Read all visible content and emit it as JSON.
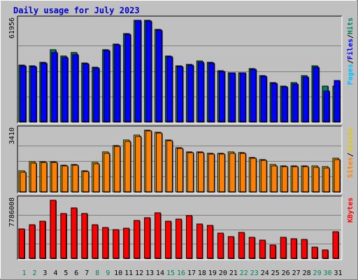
{
  "chart_data": {
    "type": "bar",
    "title": "Daily usage for July 2023",
    "categories": [
      "1",
      "2",
      "3",
      "4",
      "5",
      "6",
      "7",
      "8",
      "9",
      "10",
      "11",
      "12",
      "13",
      "14",
      "15",
      "16",
      "17",
      "18",
      "19",
      "20",
      "21",
      "22",
      "23",
      "24",
      "25",
      "26",
      "27",
      "28",
      "29",
      "30",
      "31"
    ],
    "weekend_days": [
      "1",
      "2",
      "8",
      "9",
      "15",
      "16",
      "22",
      "23",
      "29",
      "30"
    ],
    "grid": true,
    "panels": [
      {
        "id": "hits-files-pages",
        "ymax": 61956,
        "ymax_label": "61956",
        "right_label": [
          {
            "text": "Pages",
            "color": "#00c0ff"
          },
          {
            "text": "/",
            "color": "#000000"
          },
          {
            "text": "Files",
            "color": "#0000ff"
          },
          {
            "text": "/",
            "color": "#000000"
          },
          {
            "text": "Hits",
            "color": "#00805c"
          }
        ],
        "series": [
          {
            "key": "Hits",
            "color": "#00805c",
            "values": [
              34400,
              34200,
              36200,
              44100,
              40000,
              42200,
              35900,
              33300,
              44100,
              47600,
              53900,
              62100,
              62100,
              56300,
              40000,
              34000,
              35000,
              37000,
              36300,
              31200,
              30000,
              30000,
              32400,
              28000,
              24000,
              22000,
              24000,
              28000,
              34000,
              22000,
              22000
            ]
          },
          {
            "key": "Files",
            "color": "#0000ff",
            "values": [
              34000,
              33800,
              35800,
              42500,
              39500,
              41000,
              35500,
              32900,
              43700,
              47200,
              53500,
              61956,
              61700,
              55900,
              39700,
              33600,
              34700,
              36500,
              36000,
              30800,
              29800,
              29700,
              32000,
              27700,
              23700,
              21300,
              23000,
              27500,
              33500,
              19000,
              25000
            ]
          }
        ]
      },
      {
        "id": "visits-sites",
        "ymax": 3410,
        "ymax_label": "3410",
        "right_label": [
          {
            "text": "Sites",
            "color": "#ff8000"
          },
          {
            "text": "/",
            "color": "#000000"
          },
          {
            "text": "Visits",
            "color": "#e6c800"
          }
        ],
        "series": [
          {
            "key": "Visits",
            "color": "#e6c800",
            "values": [
              1150,
              1650,
              1680,
              1680,
              1480,
              1530,
              1170,
              1610,
              2200,
              2550,
              2850,
              3120,
              3410,
              3300,
              2870,
              2450,
              2220,
              2210,
              2150,
              2150,
              2190,
              2180,
              1900,
              1780,
              1500,
              1440,
              1430,
              1430,
              1420,
              1380,
              1850
            ]
          },
          {
            "key": "Sites",
            "color": "#ff8000",
            "values": [
              1100,
              1600,
              1630,
              1630,
              1430,
              1480,
              1120,
              1560,
              2150,
              2500,
              2800,
              3070,
              3360,
              3250,
              2820,
              2400,
              2170,
              2160,
              2100,
              2100,
              2140,
              2130,
              1850,
              1730,
              1450,
              1390,
              1380,
              1380,
              1370,
              1330,
              1800
            ]
          }
        ]
      },
      {
        "id": "kbytes",
        "ymax": 7786008,
        "ymax_label": "7786008",
        "right_label": [
          {
            "text": "KBytes",
            "color": "#ff0000"
          }
        ],
        "series": [
          {
            "key": "KBytes",
            "color": "#ff0000",
            "values": [
              3900000,
              4500000,
              5000000,
              7786008,
              6000000,
              6800000,
              6000000,
              4500000,
              4100000,
              3800000,
              4000000,
              5100000,
              5400000,
              6100000,
              5000000,
              5300000,
              5700000,
              4600000,
              4400000,
              3400000,
              2900000,
              3500000,
              2800000,
              2400000,
              1800000,
              2800000,
              2600000,
              2500000,
              1500000,
              1100000,
              3600000
            ]
          }
        ]
      }
    ]
  }
}
